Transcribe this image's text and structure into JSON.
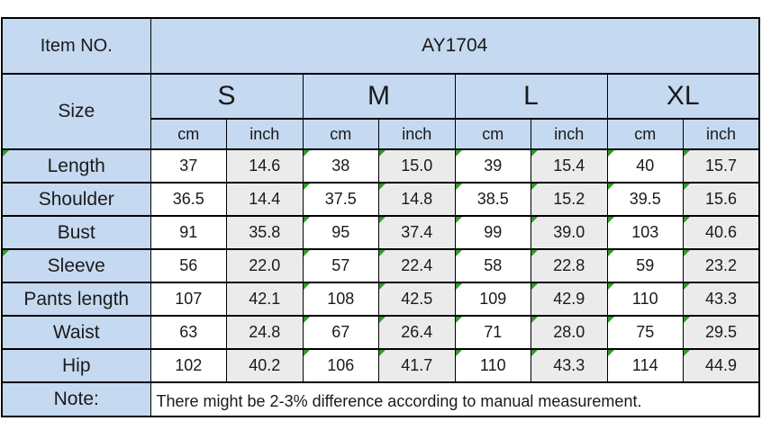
{
  "header": {
    "item_no_label": "Item NO.",
    "item_no_value": "AY1704",
    "size_label": "Size",
    "sizes": [
      "S",
      "M",
      "L",
      "XL"
    ],
    "units": [
      "cm",
      "inch"
    ]
  },
  "note": {
    "label": "Note:",
    "text": "There might be 2-3% difference according to manual measurement."
  },
  "colors": {
    "header_blue": "#c5d9f1",
    "inch_column_gray": "#ebebeb",
    "cm_column_white": "#ffffff",
    "grid_border": "#000000",
    "corner_marker_green": "#2f9d27"
  },
  "chart_data": {
    "type": "table",
    "title": "AY1704",
    "columns": [
      "Size",
      "S cm",
      "S inch",
      "M cm",
      "M inch",
      "L cm",
      "L inch",
      "XL cm",
      "XL inch"
    ],
    "rows": [
      {
        "label": "Length",
        "values": [
          "37",
          "14.6",
          "38",
          "15.0",
          "39",
          "15.4",
          "40",
          "15.7"
        ],
        "label_marker": true
      },
      {
        "label": "Shoulder",
        "values": [
          "36.5",
          "14.4",
          "37.5",
          "14.8",
          "38.5",
          "15.2",
          "39.5",
          "15.6"
        ],
        "label_marker": false
      },
      {
        "label": "Bust",
        "values": [
          "91",
          "35.8",
          "95",
          "37.4",
          "99",
          "39.0",
          "103",
          "40.6"
        ],
        "label_marker": false
      },
      {
        "label": "Sleeve",
        "values": [
          "56",
          "22.0",
          "57",
          "22.4",
          "58",
          "22.8",
          "59",
          "23.2"
        ],
        "label_marker": true
      },
      {
        "label": "Pants length",
        "values": [
          "107",
          "42.1",
          "108",
          "42.5",
          "109",
          "42.9",
          "110",
          "43.3"
        ],
        "label_marker": false
      },
      {
        "label": "Waist",
        "values": [
          "63",
          "24.8",
          "67",
          "26.4",
          "71",
          "28.0",
          "75",
          "29.5"
        ],
        "label_marker": false
      },
      {
        "label": "Hip",
        "values": [
          "102",
          "40.2",
          "106",
          "41.7",
          "110",
          "43.3",
          "114",
          "44.9"
        ],
        "label_marker": false
      }
    ],
    "marker_value_columns": [
      2,
      3,
      4,
      5,
      6,
      7
    ],
    "note": "There might be 2-3% difference according to manual measurement."
  }
}
